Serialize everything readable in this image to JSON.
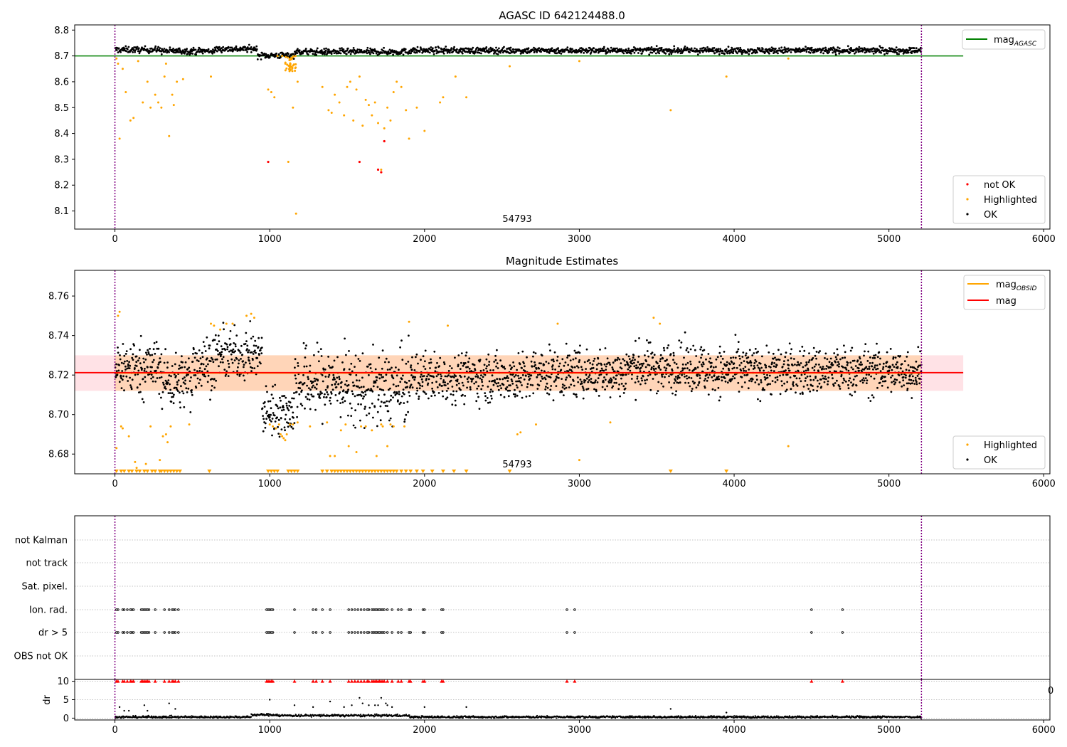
{
  "figure": {
    "title_top": "AGASC ID 642124488.0",
    "title_middle": "Magnitude Estimates",
    "obsid_label": "54793",
    "colors": {
      "ok": "#000000",
      "highlighted": "#ffa500",
      "not_ok": "#ff0000",
      "agasc_line": "#008000",
      "obsid_line": "#ffa500",
      "mag_line": "#ff0000",
      "band": "#ffb6c1",
      "boundary": "#800080"
    }
  },
  "chart_data": [
    {
      "type": "scatter",
      "title": "AGASC ID 642124488.0",
      "xlabel": "",
      "ylabel": "",
      "xlim": [
        -260,
        6040
      ],
      "ylim": [
        8.03,
        8.82
      ],
      "x_ticks": [
        "0",
        "1000",
        "2000",
        "3000",
        "4000",
        "5000",
        "6000"
      ],
      "y_ticks": [
        "8.1",
        "8.2",
        "8.3",
        "8.4",
        "8.5",
        "8.6",
        "8.7",
        "8.8"
      ],
      "grid": false,
      "legends": [
        {
          "placement": "upper-right",
          "entries": [
            "mag_{AGASC}"
          ]
        },
        {
          "placement": "lower-right",
          "entries": [
            "not OK",
            "Highlighted",
            "OK"
          ]
        }
      ],
      "legend_labels": {
        "mag_main": "mag",
        "mag_sub": "AGASC",
        "not_ok": "not OK",
        "highlighted": "Highlighted",
        "ok": "OK"
      },
      "reference_lines": [
        {
          "name": "mag_{AGASC}",
          "y": 8.7,
          "x": [
            -260,
            5480
          ]
        }
      ],
      "obsid_boundaries": [
        0,
        5210
      ],
      "ok_band": {
        "center": 8.721,
        "spread": 0.012
      },
      "ok_segments": [
        {
          "x": [
            0,
            300
          ],
          "y": 8.724
        },
        {
          "x": [
            300,
            650
          ],
          "y": 8.719
        },
        {
          "x": [
            650,
            920
          ],
          "y": 8.727
        },
        {
          "x": [
            920,
            1160
          ],
          "y": 8.702
        },
        {
          "x": [
            1160,
            1900
          ],
          "y": 8.716
        },
        {
          "x": [
            1900,
            5210
          ],
          "y": 8.721
        }
      ],
      "highlighted_points": {
        "x": [
          10,
          20,
          30,
          50,
          70,
          100,
          120,
          150,
          180,
          210,
          230,
          260,
          280,
          300,
          320,
          330,
          350,
          370,
          380,
          400,
          440,
          620,
          990,
          1010,
          1030,
          1050,
          1080,
          1120,
          1150,
          1170,
          1180,
          1340,
          1380,
          1400,
          1420,
          1450,
          1480,
          1500,
          1520,
          1540,
          1560,
          1580,
          1600,
          1620,
          1640,
          1660,
          1680,
          1700,
          1720,
          1740,
          1760,
          1780,
          1800,
          1820,
          1850,
          1880,
          1900,
          1950,
          2000,
          2100,
          2120,
          2200,
          2270,
          2550,
          3000,
          3590,
          3950,
          4350
        ],
        "y": [
          8.69,
          8.67,
          8.38,
          8.65,
          8.56,
          8.45,
          8.46,
          8.68,
          8.52,
          8.6,
          8.5,
          8.55,
          8.52,
          8.5,
          8.62,
          8.67,
          8.39,
          8.55,
          8.51,
          8.6,
          8.61,
          8.62,
          8.57,
          8.56,
          8.54,
          8.7,
          8.7,
          8.29,
          8.5,
          8.09,
          8.6,
          8.58,
          8.49,
          8.48,
          8.55,
          8.52,
          8.47,
          8.58,
          8.6,
          8.45,
          8.57,
          8.62,
          8.43,
          8.53,
          8.51,
          8.47,
          8.52,
          8.44,
          8.26,
          8.42,
          8.5,
          8.45,
          8.56,
          8.6,
          8.58,
          8.49,
          8.38,
          8.5,
          8.41,
          8.52,
          8.54,
          8.62,
          8.54,
          8.66,
          8.68,
          8.49,
          8.62,
          8.69
        ]
      },
      "not_ok_points": {
        "x": [
          990,
          1580,
          1700,
          1720,
          1740
        ],
        "y": [
          8.29,
          8.29,
          8.26,
          8.25,
          8.37
        ]
      }
    },
    {
      "type": "scatter",
      "title": "Magnitude Estimates",
      "xlabel": "",
      "ylabel": "",
      "xlim": [
        -260,
        6040
      ],
      "ylim": [
        8.67,
        8.773
      ],
      "x_ticks": [
        "0",
        "1000",
        "2000",
        "3000",
        "4000",
        "5000",
        "6000"
      ],
      "y_ticks": [
        "8.68",
        "8.70",
        "8.72",
        "8.74",
        "8.76"
      ],
      "grid": false,
      "legends": [
        {
          "placement": "upper-right",
          "entries": [
            "mag_{OBSID}",
            "mag"
          ]
        },
        {
          "placement": "lower-right",
          "entries": [
            "Highlighted",
            "OK"
          ]
        }
      ],
      "legend_labels": {
        "obsid_main": "mag",
        "obsid_sub": "OBSID",
        "mag": "mag",
        "highlighted": "Highlighted",
        "ok": "OK"
      },
      "mag_obsid": {
        "y": 8.721,
        "x": [
          0,
          5210
        ]
      },
      "mag": {
        "y": 8.7212,
        "x": [
          -260,
          5480
        ]
      },
      "mag_band": {
        "y_low": 8.712,
        "y_high": 8.73,
        "x": [
          -260,
          5480
        ]
      },
      "obsid_band": {
        "y_low": 8.712,
        "y_high": 8.73,
        "x": [
          0,
          5210
        ]
      },
      "obsid_boundaries": [
        0,
        5210
      ],
      "ok_segments": [
        {
          "x": [
            0,
            300
          ],
          "y": 8.724,
          "spread": 0.007
        },
        {
          "x": [
            300,
            500
          ],
          "y": 8.717,
          "spread": 0.007
        },
        {
          "x": [
            500,
            650
          ],
          "y": 8.726,
          "spread": 0.007
        },
        {
          "x": [
            650,
            950
          ],
          "y": 8.73,
          "spread": 0.006
        },
        {
          "x": [
            950,
            1160
          ],
          "y": 8.702,
          "spread": 0.006
        },
        {
          "x": [
            1160,
            1500
          ],
          "y": 8.716,
          "spread": 0.009
        },
        {
          "x": [
            1500,
            1900
          ],
          "y": 8.713,
          "spread": 0.009
        },
        {
          "x": [
            1900,
            2700
          ],
          "y": 8.719,
          "spread": 0.006
        },
        {
          "x": [
            2700,
            3300
          ],
          "y": 8.721,
          "spread": 0.006
        },
        {
          "x": [
            3300,
            3800
          ],
          "y": 8.724,
          "spread": 0.006
        },
        {
          "x": [
            3800,
            5210
          ],
          "y": 8.722,
          "spread": 0.006
        }
      ],
      "highlighted_points": {
        "x": [
          10,
          20,
          30,
          40,
          50,
          90,
          130,
          140,
          200,
          230,
          290,
          310,
          330,
          340,
          360,
          480,
          620,
          640,
          680,
          720,
          760,
          850,
          880,
          900,
          1000,
          1020,
          1040,
          1060,
          1070,
          1080,
          1090,
          1100,
          1110,
          1130,
          1150,
          1180,
          1260,
          1370,
          1390,
          1420,
          1460,
          1490,
          1510,
          1560,
          1590,
          1620,
          1660,
          1690,
          1720,
          1730,
          1760,
          1780,
          1800,
          1870,
          1900,
          2150,
          2600,
          2620,
          2720,
          2860,
          3000,
          3200,
          3480,
          3520,
          4350
        ],
        "y": [
          8.683,
          8.75,
          8.752,
          8.694,
          8.693,
          8.689,
          8.676,
          8.673,
          8.675,
          8.694,
          8.677,
          8.689,
          8.69,
          8.686,
          8.694,
          8.695,
          8.746,
          8.745,
          8.743,
          8.746,
          8.746,
          8.75,
          8.751,
          8.749,
          8.695,
          8.694,
          8.693,
          8.695,
          8.69,
          8.689,
          8.688,
          8.687,
          8.69,
          8.695,
          8.695,
          8.696,
          8.694,
          8.696,
          8.679,
          8.679,
          8.692,
          8.695,
          8.684,
          8.681,
          8.694,
          8.694,
          8.692,
          8.679,
          8.695,
          8.694,
          8.684,
          8.695,
          8.694,
          8.694,
          8.747,
          8.745,
          8.69,
          8.691,
          8.695,
          8.746,
          8.677,
          8.696,
          8.749,
          8.746,
          8.684
        ]
      },
      "below_range_markers": {
        "x": [
          10,
          40,
          60,
          90,
          110,
          140,
          160,
          190,
          210,
          240,
          260,
          290,
          300,
          320,
          340,
          360,
          380,
          400,
          420,
          610,
          990,
          1010,
          1030,
          1050,
          1120,
          1140,
          1160,
          1180,
          1340,
          1370,
          1400,
          1420,
          1440,
          1460,
          1480,
          1500,
          1520,
          1540,
          1560,
          1580,
          1600,
          1620,
          1640,
          1660,
          1680,
          1700,
          1720,
          1740,
          1760,
          1780,
          1800,
          1820,
          1850,
          1880,
          1910,
          1950,
          1990,
          2050,
          2120,
          2190,
          2270,
          2550,
          3590,
          3950
        ]
      }
    },
    {
      "type": "scatter",
      "title": "",
      "xlabel": "",
      "ylabel": "",
      "flag_rows": [
        "not Kalman",
        "not track",
        "Sat. pixel.",
        "Ion. rad.",
        "dr > 5",
        "OBS not OK"
      ],
      "grid": true,
      "obsid_boundaries": [
        0,
        5210
      ],
      "ion_rad_x": [
        10,
        20,
        50,
        60,
        80,
        100,
        110,
        120,
        170,
        180,
        190,
        200,
        210,
        220,
        260,
        320,
        350,
        370,
        380,
        390,
        410,
        980,
        990,
        1000,
        1010,
        1020,
        1160,
        1280,
        1300,
        1340,
        1390,
        1510,
        1530,
        1550,
        1570,
        1590,
        1610,
        1630,
        1640,
        1660,
        1670,
        1680,
        1690,
        1700,
        1710,
        1720,
        1730,
        1740,
        1760,
        1790,
        1830,
        1850,
        1900,
        1910,
        1990,
        2000,
        2110,
        2120,
        2920,
        2970,
        4500,
        4700
      ],
      "dr5_x": [
        10,
        20,
        50,
        60,
        80,
        100,
        110,
        120,
        170,
        180,
        190,
        200,
        210,
        220,
        260,
        320,
        350,
        370,
        380,
        390,
        410,
        980,
        990,
        1000,
        1010,
        1020,
        1160,
        1280,
        1300,
        1340,
        1390,
        1510,
        1530,
        1550,
        1570,
        1590,
        1610,
        1630,
        1640,
        1660,
        1670,
        1680,
        1690,
        1700,
        1710,
        1720,
        1730,
        1740,
        1760,
        1790,
        1830,
        1850,
        1900,
        1910,
        1990,
        2000,
        2110,
        2120,
        2920,
        2970,
        4500,
        4700
      ]
    },
    {
      "type": "scatter",
      "title": "",
      "xlabel": "",
      "ylabel": "dr",
      "xlim": [
        -260,
        6040
      ],
      "ylim": [
        -0.5,
        10.5
      ],
      "x_ticks": [
        "0",
        "1000",
        "2000",
        "3000",
        "4000",
        "5000",
        "6000"
      ],
      "y_ticks": [
        "0",
        "5",
        "10"
      ],
      "grid": true,
      "obsid_boundaries": [
        0,
        5210
      ],
      "edge_label": "0",
      "clipped_markers_x": [
        10,
        20,
        50,
        60,
        80,
        100,
        110,
        120,
        170,
        180,
        190,
        200,
        210,
        220,
        260,
        320,
        350,
        370,
        380,
        390,
        410,
        980,
        990,
        1000,
        1010,
        1020,
        1160,
        1280,
        1300,
        1340,
        1390,
        1510,
        1530,
        1550,
        1570,
        1590,
        1610,
        1630,
        1640,
        1660,
        1670,
        1680,
        1690,
        1700,
        1710,
        1720,
        1730,
        1740,
        1760,
        1790,
        1830,
        1850,
        1900,
        1910,
        1990,
        2000,
        2110,
        2120,
        2920,
        2970,
        4500,
        4700
      ],
      "high_points": {
        "x": [
          30,
          60,
          90,
          190,
          210,
          350,
          390,
          1000,
          1160,
          1280,
          1390,
          1480,
          1530,
          1580,
          1600,
          1640,
          1680,
          1700,
          1720,
          1750,
          1760,
          1790,
          2000,
          2270,
          3590,
          3950
        ],
        "y": [
          3,
          2,
          2,
          3.5,
          2,
          4,
          2.5,
          5,
          3.5,
          3,
          4.5,
          3,
          3.5,
          5.5,
          4,
          3.5,
          3.5,
          3.5,
          5.5,
          4,
          3.5,
          3,
          3,
          3,
          2.5,
          1.5
        ]
      },
      "baseline": [
        {
          "x": [
            0,
            880
          ],
          "y": 0.3
        },
        {
          "x": [
            880,
            1050
          ],
          "y": 0.9
        },
        {
          "x": [
            1050,
            1900
          ],
          "y": 0.7
        },
        {
          "x": [
            1900,
            5210
          ],
          "y": 0.3
        }
      ]
    }
  ]
}
